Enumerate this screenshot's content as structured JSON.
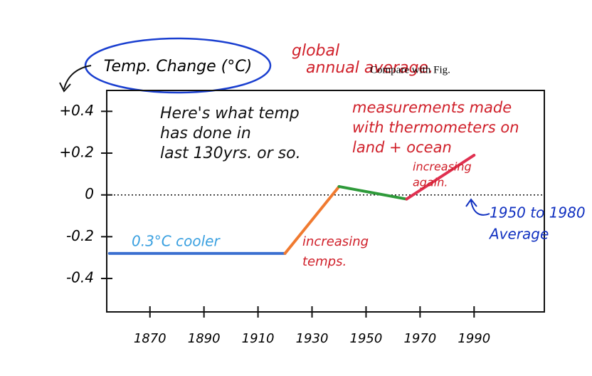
{
  "chart_data": {
    "type": "line",
    "ylabel": "Temp. Change (°C)",
    "x": [
      1855,
      1920,
      1940,
      1965,
      1990
    ],
    "series": [
      {
        "values": [
          -0.28,
          -0.28,
          0.04,
          -0.02,
          0.19
        ]
      }
    ],
    "segment_colors": [
      "#3a6fd0",
      "#f07a30",
      "#2e9a3a",
      "#e03050"
    ],
    "xlim": [
      1854,
      2016
    ],
    "xticks": [
      1870,
      1890,
      1910,
      1930,
      1950,
      1970,
      1990
    ],
    "ylim": [
      -0.56,
      0.5
    ],
    "yticks": [
      {
        "value": 0.4,
        "label": "+0.4"
      },
      {
        "value": 0.2,
        "label": "+0.2"
      },
      0,
      -0.2,
      -0.4
    ],
    "reference_line": 0,
    "annotations": [
      {
        "lines": [
          "global",
          "annual average."
        ],
        "color": "#d0202a"
      },
      {
        "lines": [
          "Compare with Fig."
        ],
        "color": "#000000"
      },
      {
        "lines": [
          "Here's what temp",
          "has done in",
          "last 130yrs. or so."
        ],
        "color": "#111111"
      },
      {
        "lines": [
          "measurements made",
          "with thermometers on",
          "land + ocean"
        ],
        "color": "#d0202a"
      },
      {
        "lines": [
          "0.3°C cooler"
        ],
        "color": "#3aa0e0"
      },
      {
        "lines": [
          "increasing",
          "temps."
        ],
        "color": "#d0202a"
      },
      {
        "lines": [
          "increasing",
          "again."
        ],
        "color": "#d0202a"
      },
      {
        "lines": [
          "1950 to 1980",
          "Average"
        ],
        "color": "#1030c0"
      }
    ]
  }
}
